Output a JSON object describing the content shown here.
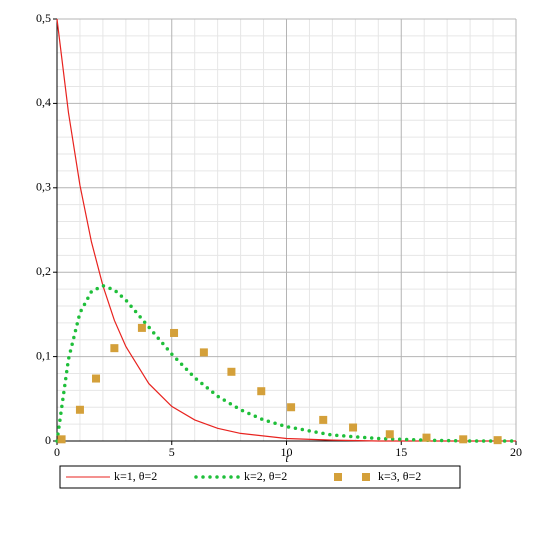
{
  "chart_data": {
    "type": "line",
    "x_label": "t",
    "xlim": [
      0,
      20
    ],
    "xticks": [
      0,
      5,
      10,
      15,
      20
    ],
    "ylim": [
      0,
      0.5
    ],
    "yticks": [
      0,
      {
        "value": 0.1,
        "label": "0,1"
      },
      {
        "value": 0.2,
        "label": "0,2"
      },
      {
        "value": 0.3,
        "label": "0,3"
      },
      {
        "value": 0.4,
        "label": "0,4"
      },
      {
        "value": 0.5,
        "label": "0,5"
      }
    ],
    "grid": true,
    "legend": "bottom",
    "series": [
      {
        "name": "k=1, θ=2",
        "color": "#e8231f",
        "style": "solid",
        "x": [
          0,
          0.5,
          1,
          1.5,
          2,
          2.5,
          3,
          4,
          5,
          6,
          7,
          8,
          10,
          12,
          14,
          16,
          18,
          20
        ],
        "values": [
          0.5,
          0.389,
          0.303,
          0.236,
          0.184,
          0.143,
          0.112,
          0.068,
          0.041,
          0.025,
          0.015,
          0.009,
          0.003,
          0.001,
          0,
          0,
          0,
          0
        ]
      },
      {
        "name": "k=2, θ=2",
        "color": "#1fbf3a",
        "style": "dotted",
        "x": [
          0,
          0.5,
          1,
          1.5,
          2,
          2.5,
          3,
          4,
          5,
          6,
          7,
          8,
          9,
          10,
          12,
          14,
          16,
          18,
          20
        ],
        "values": [
          0,
          0.097,
          0.152,
          0.177,
          0.184,
          0.179,
          0.167,
          0.135,
          0.103,
          0.075,
          0.053,
          0.037,
          0.025,
          0.017,
          0.007,
          0.003,
          0.001,
          0,
          0
        ]
      },
      {
        "name": "k=3, θ=2",
        "color": "#d4a03a",
        "style": "markers",
        "x": [
          0.2,
          1,
          1.7,
          2.5,
          3.7,
          5.1,
          6.4,
          7.6,
          8.9,
          10.2,
          11.6,
          12.9,
          14.5,
          16.1,
          17.7,
          19.2
        ],
        "values": [
          0.002,
          0.037,
          0.074,
          0.11,
          0.134,
          0.128,
          0.105,
          0.082,
          0.059,
          0.04,
          0.025,
          0.016,
          0.008,
          0.004,
          0.002,
          0.001
        ]
      }
    ]
  }
}
